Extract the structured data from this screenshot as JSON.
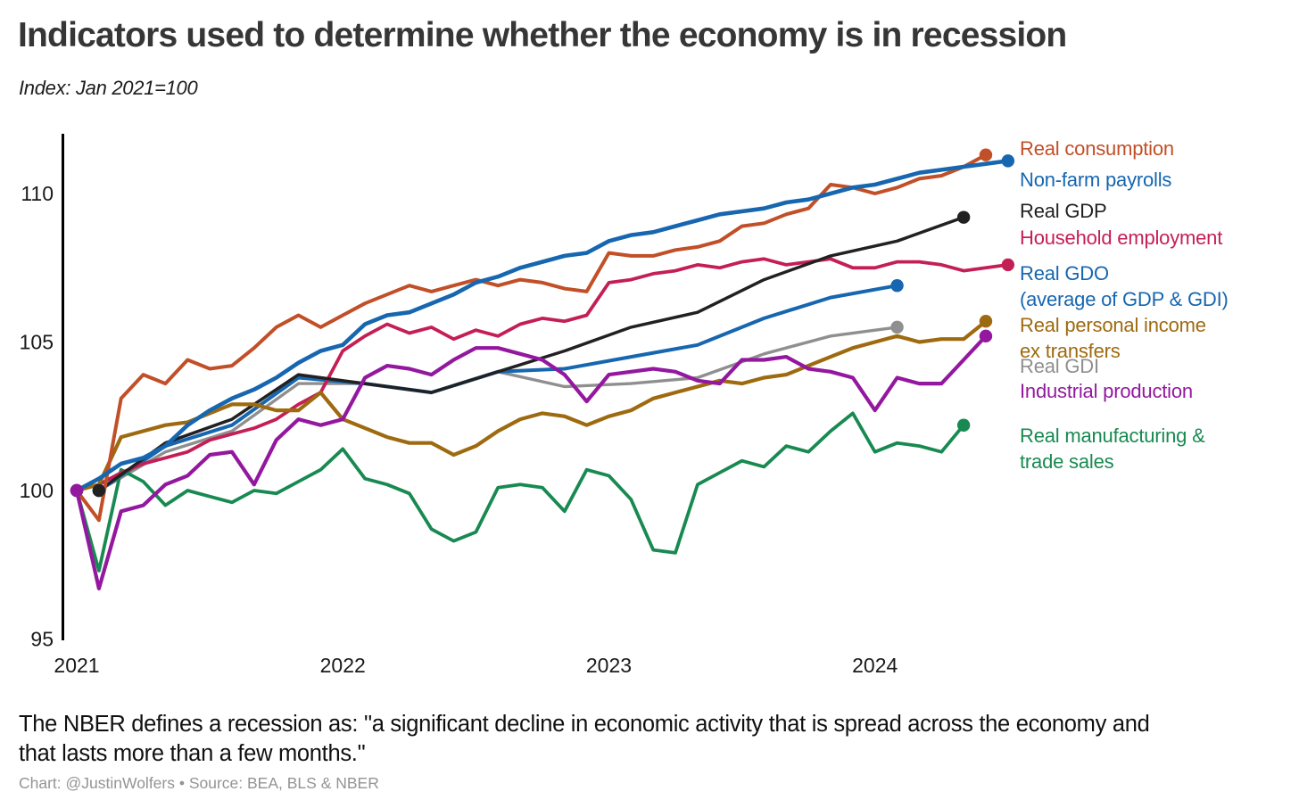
{
  "page": {
    "title": "Indicators used to determine whether the economy is in recession",
    "subtitle": "Index: Jan 2021=100"
  },
  "footer": {
    "definition_line1": "The NBER defines a recession as: \"a significant decline in economic activity that is spread across the economy and",
    "definition_line2": "that lasts more than a few months.\"",
    "credit": "Chart: @JustinWolfers • Source: BEA, BLS & NBER"
  },
  "chart_data": {
    "type": "line",
    "title": "Indicators used to determine whether the economy is in recession",
    "index_note": "Index: Jan 2021=100",
    "x_axis": {
      "unit": "months since Jan 2021",
      "ticks": [
        {
          "label": "2021",
          "month": 0
        },
        {
          "label": "2022",
          "month": 12
        },
        {
          "label": "2023",
          "month": 24
        },
        {
          "label": "2024",
          "month": 36
        }
      ]
    },
    "y_axis": {
      "ticks": [
        95,
        100,
        105,
        110
      ],
      "min": 94,
      "max": 112.2,
      "grid": false
    },
    "legend_position": "right",
    "series": [
      {
        "name": "Real consumption",
        "slug": "real-consumption",
        "legend_lines": [
          "Real consumption"
        ],
        "color": "#c14f27",
        "width": 4,
        "start_month": 0,
        "step_months": 1,
        "values": [
          100,
          99.0,
          103.1,
          103.9,
          103.6,
          104.4,
          104.1,
          104.2,
          104.8,
          105.5,
          105.9,
          105.5,
          105.9,
          106.3,
          106.6,
          106.9,
          106.7,
          106.9,
          107.1,
          106.9,
          107.1,
          107.0,
          106.8,
          106.7,
          108.0,
          107.9,
          107.9,
          108.1,
          108.2,
          108.4,
          108.9,
          109.0,
          109.3,
          109.5,
          110.3,
          110.2,
          110.0,
          110.2,
          110.5,
          110.6,
          110.9,
          111.3
        ]
      },
      {
        "name": "Non-farm payrolls",
        "slug": "non-farm-payrolls",
        "legend_lines": [
          "Non-farm payrolls"
        ],
        "color": "#1666b0",
        "width": 4.6,
        "start_month": 0,
        "step_months": 1,
        "values": [
          100,
          100.4,
          100.9,
          101.1,
          101.5,
          102.2,
          102.7,
          103.1,
          103.4,
          103.8,
          104.3,
          104.7,
          104.9,
          105.6,
          105.9,
          106.0,
          106.3,
          106.6,
          107.0,
          107.2,
          107.5,
          107.7,
          107.9,
          108.0,
          108.4,
          108.6,
          108.7,
          108.9,
          109.1,
          109.3,
          109.4,
          109.5,
          109.7,
          109.8,
          110.0,
          110.2,
          110.3,
          110.5,
          110.7,
          110.8,
          110.9,
          111.0,
          111.1
        ]
      },
      {
        "name": "Real GDP",
        "slug": "real-gdp",
        "legend_lines": [
          "Real GDP"
        ],
        "color": "#212121",
        "width": 3.5,
        "start_month": 1,
        "step_months": 3,
        "values": [
          100,
          101.6,
          102.4,
          103.9,
          103.6,
          103.3,
          104.0,
          104.7,
          105.5,
          106.0,
          107.1,
          107.9,
          108.4,
          109.2
        ]
      },
      {
        "name": "Household employment",
        "slug": "household-employment",
        "legend_lines": [
          "Household employment"
        ],
        "color": "#c41f54",
        "width": 3.8,
        "start_month": 0,
        "step_months": 1,
        "values": [
          100,
          100.2,
          100.6,
          100.9,
          101.1,
          101.3,
          101.7,
          101.9,
          102.1,
          102.4,
          102.9,
          103.3,
          104.7,
          105.2,
          105.6,
          105.3,
          105.5,
          105.1,
          105.4,
          105.2,
          105.6,
          105.8,
          105.7,
          105.9,
          107.0,
          107.1,
          107.3,
          107.4,
          107.6,
          107.5,
          107.7,
          107.8,
          107.6,
          107.7,
          107.8,
          107.5,
          107.5,
          107.7,
          107.7,
          107.6,
          107.4,
          107.5,
          107.6
        ]
      },
      {
        "name": "Real GDO (average of GDP & GDI)",
        "slug": "real-gdo",
        "legend_lines": [
          "Real GDO",
          "(average of GDP & GDI)"
        ],
        "color": "#1666b0",
        "width": 4,
        "start_month": 1,
        "step_months": 3,
        "values": [
          100,
          101.5,
          102.2,
          103.8,
          103.6,
          103.3,
          104.0,
          104.1,
          104.5,
          104.9,
          105.8,
          106.5,
          106.9
        ]
      },
      {
        "name": "Real personal income ex transfers",
        "slug": "real-personal-income-ex-transfers",
        "legend_lines": [
          "Real personal income",
          "ex transfers"
        ],
        "color": "#9e6a10",
        "width": 4.2,
        "start_month": 0,
        "step_months": 1,
        "values": [
          100,
          100.2,
          101.8,
          102.0,
          102.2,
          102.3,
          102.6,
          102.9,
          102.9,
          102.7,
          102.7,
          103.3,
          102.4,
          102.1,
          101.8,
          101.6,
          101.6,
          101.2,
          101.5,
          102.0,
          102.4,
          102.6,
          102.5,
          102.2,
          102.5,
          102.7,
          103.1,
          103.3,
          103.5,
          103.7,
          103.6,
          103.8,
          103.9,
          104.2,
          104.5,
          104.8,
          105.0,
          105.2,
          105.0,
          105.1,
          105.1,
          105.7
        ]
      },
      {
        "name": "Real GDI",
        "slug": "real-gdi",
        "legend_lines": [
          "Real GDI"
        ],
        "color": "#8f8f8f",
        "width": 3.4,
        "start_month": 1,
        "step_months": 3,
        "values": [
          100,
          101.3,
          102.0,
          103.6,
          103.6,
          103.3,
          104.0,
          103.5,
          103.6,
          103.8,
          104.6,
          105.2,
          105.5
        ]
      },
      {
        "name": "Industrial production",
        "slug": "industrial-production",
        "legend_lines": [
          "Industrial production"
        ],
        "color": "#93189f",
        "width": 4.2,
        "start_month": 0,
        "step_months": 1,
        "values": [
          100,
          96.7,
          99.3,
          99.5,
          100.2,
          100.5,
          101.2,
          101.3,
          100.2,
          101.7,
          102.4,
          102.2,
          102.4,
          103.8,
          104.2,
          104.1,
          103.9,
          104.4,
          104.8,
          104.8,
          104.6,
          104.4,
          103.9,
          103.0,
          103.9,
          104.0,
          104.1,
          104.0,
          103.7,
          103.6,
          104.4,
          104.4,
          104.5,
          104.1,
          104.0,
          103.8,
          102.7,
          103.8,
          103.6,
          103.6,
          104.4,
          105.2
        ]
      },
      {
        "name": "Real manufacturing & trade sales",
        "slug": "real-manufacturing-trade-sales",
        "legend_lines": [
          "Real manufacturing &",
          "trade sales"
        ],
        "color": "#188a51",
        "width": 3.8,
        "start_month": 0,
        "step_months": 1,
        "values": [
          100,
          97.3,
          100.7,
          100.3,
          99.5,
          100.0,
          99.8,
          99.6,
          100.0,
          99.9,
          100.3,
          100.7,
          101.4,
          100.4,
          100.2,
          99.9,
          98.7,
          98.3,
          98.6,
          100.1,
          100.2,
          100.1,
          99.3,
          100.7,
          100.5,
          99.7,
          98.0,
          97.9,
          100.2,
          100.6,
          101.0,
          100.8,
          101.5,
          101.3,
          102.0,
          102.6,
          101.3,
          101.6,
          101.5,
          101.3,
          102.2
        ]
      }
    ]
  }
}
